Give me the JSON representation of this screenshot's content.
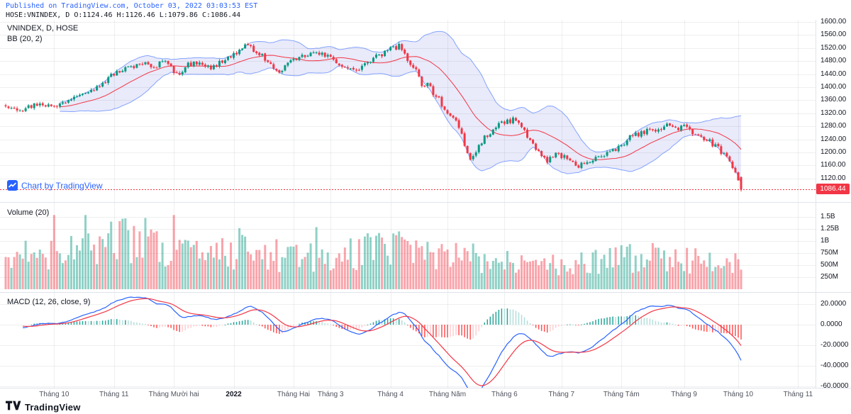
{
  "header": {
    "published_line": "Published on TradingView.com, October 03, 2022 03:03:53 EST",
    "symbol_line": "HOSE:VNINDEX, D O:1124.46 H:1126.46 L:1079.86 C:1086.44"
  },
  "panes": {
    "price": {
      "legend_line1": "VNINDEX, D, HOSE",
      "legend_line2": "BB (20, 2)"
    },
    "volume": {
      "legend": "Volume (20)"
    },
    "macd": {
      "legend": "MACD (12, 26, close, 9)"
    }
  },
  "watermark": {
    "text": "Chart by TradingView"
  },
  "price_label": {
    "value": "1086.44"
  },
  "footer": {
    "brand": "TradingView"
  },
  "colors": {
    "up": "#089981",
    "down": "#f23645",
    "vol_up": "rgba(8,153,129,0.45)",
    "vol_down": "rgba(242,54,69,0.45)",
    "bb_fill": "rgba(87,96,219,0.13)",
    "bb_border": "rgba(41,98,255,0.55)",
    "bb_basis": "#f23645",
    "macd_line": "#2962FF",
    "signal_line": "#F23645",
    "hist_up_grow": "#26A69A",
    "hist_up_fall": "#B2DFDB",
    "hist_dn_fall": "#FF5252",
    "hist_dn_grow": "#FFCDD2",
    "grid": "rgba(42,46,57,0.08)",
    "separator": "#dfe3ec",
    "last_price_line": "#f23645",
    "badge_bg": "#f23645",
    "accent_link": "#2962FF"
  },
  "chart_data": {
    "type": "candlestick",
    "symbol": "VNINDEX",
    "exchange": "HOSE",
    "timeframe": "D",
    "panes": [
      {
        "name": "price",
        "type": "candlestick",
        "indicators": [
          "BB (20, 2)"
        ],
        "last_price": 1086.44,
        "last_candle": {
          "open": 1124.46,
          "high": 1126.46,
          "low": 1079.86,
          "close": 1086.44
        },
        "y_ticks": [
          {
            "v": 1600,
            "label": "1600.00"
          },
          {
            "v": 1560,
            "label": "1560.00"
          },
          {
            "v": 1520,
            "label": "1520.00"
          },
          {
            "v": 1480,
            "label": "1480.00"
          },
          {
            "v": 1440,
            "label": "1440.00"
          },
          {
            "v": 1400,
            "label": "1400.00"
          },
          {
            "v": 1360,
            "label": "1360.00"
          },
          {
            "v": 1320,
            "label": "1320.00"
          },
          {
            "v": 1280,
            "label": "1280.00"
          },
          {
            "v": 1240,
            "label": "1240.00"
          },
          {
            "v": 1200,
            "label": "1200.00"
          },
          {
            "v": 1160,
            "label": "1160.00"
          },
          {
            "v": 1120,
            "label": "1120.00"
          }
        ],
        "price_anchors": [
          [
            0,
            1345
          ],
          [
            6,
            1332
          ],
          [
            12,
            1352
          ],
          [
            17,
            1338
          ],
          [
            22,
            1362
          ],
          [
            27,
            1388
          ],
          [
            32,
            1398
          ],
          [
            38,
            1442
          ],
          [
            44,
            1462
          ],
          [
            48,
            1476
          ],
          [
            52,
            1455
          ],
          [
            56,
            1488
          ],
          [
            60,
            1438
          ],
          [
            64,
            1468
          ],
          [
            68,
            1480
          ],
          [
            72,
            1455
          ],
          [
            76,
            1482
          ],
          [
            80,
            1500
          ],
          [
            84,
            1526
          ],
          [
            88,
            1512
          ],
          [
            92,
            1478
          ],
          [
            95,
            1445
          ],
          [
            100,
            1475
          ],
          [
            105,
            1498
          ],
          [
            109,
            1505
          ],
          [
            114,
            1490
          ],
          [
            118,
            1468
          ],
          [
            122,
            1448
          ],
          [
            126,
            1470
          ],
          [
            130,
            1492
          ],
          [
            135,
            1516
          ],
          [
            138,
            1526
          ],
          [
            141,
            1482
          ],
          [
            144,
            1458
          ],
          [
            146,
            1400
          ],
          [
            148,
            1420
          ],
          [
            150,
            1380
          ],
          [
            152,
            1366
          ],
          [
            154,
            1330
          ],
          [
            156,
            1310
          ],
          [
            158,
            1290
          ],
          [
            160,
            1250
          ],
          [
            162,
            1195
          ],
          [
            163,
            1175
          ],
          [
            165,
            1205
          ],
          [
            168,
            1245
          ],
          [
            171,
            1272
          ],
          [
            175,
            1292
          ],
          [
            178,
            1300
          ],
          [
            181,
            1282
          ],
          [
            184,
            1232
          ],
          [
            187,
            1202
          ],
          [
            190,
            1172
          ],
          [
            193,
            1196
          ],
          [
            197,
            1182
          ],
          [
            200,
            1156
          ],
          [
            204,
            1172
          ],
          [
            208,
            1186
          ],
          [
            212,
            1196
          ],
          [
            216,
            1222
          ],
          [
            220,
            1252
          ],
          [
            224,
            1262
          ],
          [
            228,
            1272
          ],
          [
            232,
            1282
          ],
          [
            236,
            1275
          ],
          [
            238,
            1280
          ],
          [
            242,
            1252
          ],
          [
            246,
            1240
          ],
          [
            250,
            1212
          ],
          [
            253,
            1180
          ],
          [
            255,
            1150
          ],
          [
            257,
            1122
          ],
          [
            258,
            1086.44
          ]
        ]
      },
      {
        "name": "volume",
        "type": "bar",
        "y_ticks": [
          {
            "v": 1500,
            "label": "1.5B"
          },
          {
            "v": 1250,
            "label": "1.25B"
          },
          {
            "v": 1000,
            "label": "1B"
          },
          {
            "v": 750,
            "label": "750M"
          },
          {
            "v": 500,
            "label": "500M"
          },
          {
            "v": 250,
            "label": "250M"
          }
        ],
        "volume_anchors_millions": [
          [
            0,
            700
          ],
          [
            17,
            780
          ],
          [
            27,
            900
          ],
          [
            38,
            1000
          ],
          [
            48,
            1050
          ],
          [
            59,
            900
          ],
          [
            68,
            850
          ],
          [
            80,
            800
          ],
          [
            92,
            750
          ],
          [
            101,
            650
          ],
          [
            114,
            750
          ],
          [
            125,
            800
          ],
          [
            135,
            850
          ],
          [
            145,
            820
          ],
          [
            155,
            700
          ],
          [
            165,
            660
          ],
          [
            175,
            600
          ],
          [
            185,
            560
          ],
          [
            193,
            500
          ],
          [
            204,
            560
          ],
          [
            216,
            650
          ],
          [
            228,
            700
          ],
          [
            238,
            650
          ],
          [
            246,
            560
          ],
          [
            252,
            520
          ],
          [
            258,
            560
          ]
        ]
      },
      {
        "name": "macd",
        "type": "line+histogram",
        "params": "12, 26, close, 9",
        "y_ticks": [
          {
            "v": 20,
            "label": "20.0000"
          },
          {
            "v": 0,
            "label": "0.0000"
          },
          {
            "v": -20,
            "label": "-20.0000"
          },
          {
            "v": -40,
            "label": "-40.0000"
          },
          {
            "v": -60,
            "label": "-60.0000"
          }
        ]
      }
    ],
    "x_axis": {
      "n_points": 259,
      "month_ticks": [
        {
          "i": 17,
          "label": "Tháng 10"
        },
        {
          "i": 38,
          "label": "Tháng 11"
        },
        {
          "i": 59,
          "label": "Tháng Mười hai"
        },
        {
          "i": 80,
          "label": "2022"
        },
        {
          "i": 101,
          "label": "Tháng Hai"
        },
        {
          "i": 114,
          "label": "Tháng 3"
        },
        {
          "i": 135,
          "label": "Tháng 4"
        },
        {
          "i": 155,
          "label": "Tháng Năm"
        },
        {
          "i": 175,
          "label": "Tháng 6"
        },
        {
          "i": 195,
          "label": "Tháng 7"
        },
        {
          "i": 216,
          "label": "Tháng Tám"
        },
        {
          "i": 238,
          "label": "Tháng 9"
        },
        {
          "i": 257,
          "label": "Tháng 10"
        },
        {
          "i": 278,
          "label": "Tháng 11"
        }
      ]
    }
  }
}
